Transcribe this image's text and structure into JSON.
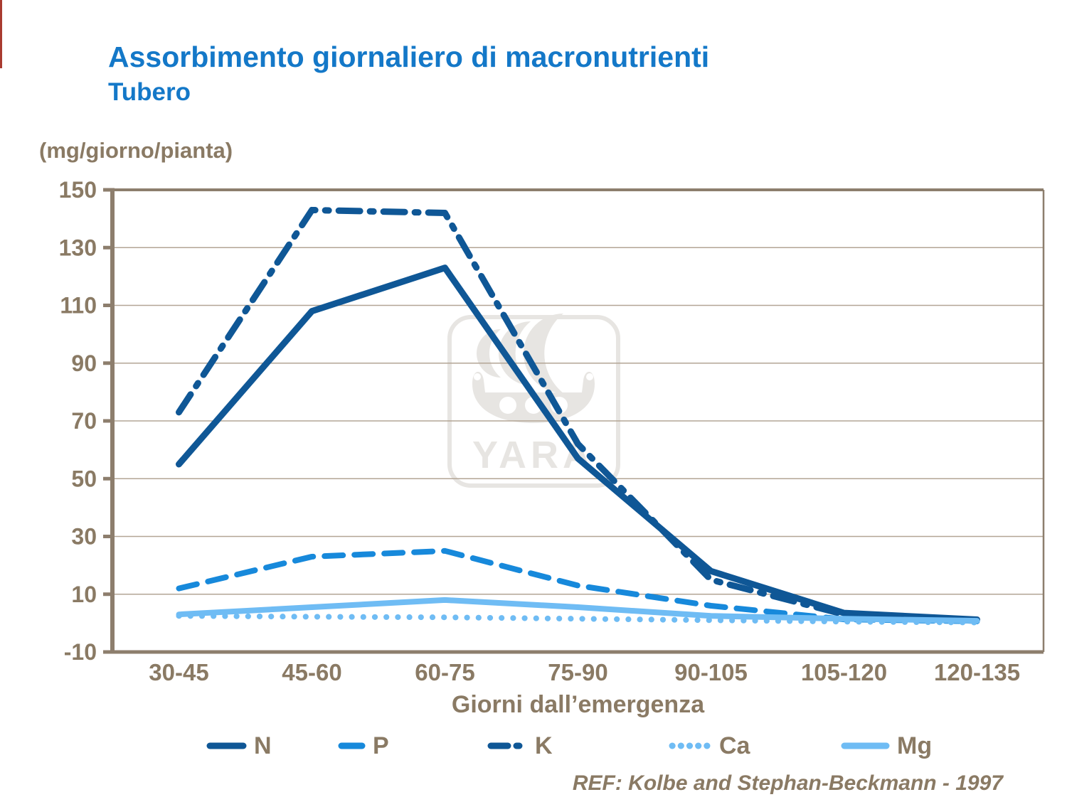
{
  "page": {
    "title": "Assorbimento giornaliero di macronutrienti",
    "subtitle": "Tubero",
    "unit_label": "(mg/giorno/pianta)",
    "ref_note": "REF: Kolbe and Stephan-Beckmann - 1997"
  },
  "colors": {
    "title_blue": "#1478C8",
    "dark_blue": "#0F5796",
    "medium_blue": "#1789DB",
    "light_blue": "#6FBCF4",
    "text_brown": "#8A7A64",
    "grid_brown": "#B3A595",
    "axis_brown": "#8D7E6D",
    "watermark_gray": "#E7E5E2",
    "edge_red": "#A93B30"
  },
  "chart_data": {
    "type": "line",
    "title": "Assorbimento giornaliero di macronutrienti - Tubero",
    "xlabel": "Giorni dall’emergenza",
    "ylabel": "(mg/giorno/pianta)",
    "categories": [
      "30-45",
      "45-60",
      "60-75",
      "75-90",
      "90-105",
      "105-120",
      "120-135"
    ],
    "ylim": [
      -10,
      150
    ],
    "yticks": [
      150,
      130,
      110,
      90,
      70,
      50,
      30,
      10,
      -10
    ],
    "grid": true,
    "legend_position": "bottom",
    "watermark": "YARA",
    "series": [
      {
        "name": "N",
        "style": "solid",
        "width": 9,
        "color": "dark_blue",
        "values": [
          55,
          108,
          123,
          57,
          18,
          3.5,
          1.2
        ]
      },
      {
        "name": "P",
        "style": "dash",
        "width": 8,
        "color": "medium_blue",
        "values": [
          12,
          23,
          25,
          13,
          6,
          1.3,
          0.6
        ]
      },
      {
        "name": "K",
        "style": "dashdot",
        "width": 9,
        "color": "dark_blue",
        "values": [
          73,
          143,
          142,
          62,
          15,
          3,
          0.8
        ]
      },
      {
        "name": "Ca",
        "style": "dot",
        "width": 8,
        "color": "light_blue",
        "values": [
          2.5,
          2.2,
          2,
          1.5,
          1,
          0.5,
          0.2
        ]
      },
      {
        "name": "Mg",
        "style": "solid",
        "width": 8,
        "color": "light_blue",
        "values": [
          3,
          5.5,
          8,
          5.5,
          2.5,
          1.5,
          0.8
        ]
      }
    ]
  },
  "legend": {
    "items": [
      "N",
      "P",
      "K",
      "Ca",
      "Mg"
    ]
  }
}
